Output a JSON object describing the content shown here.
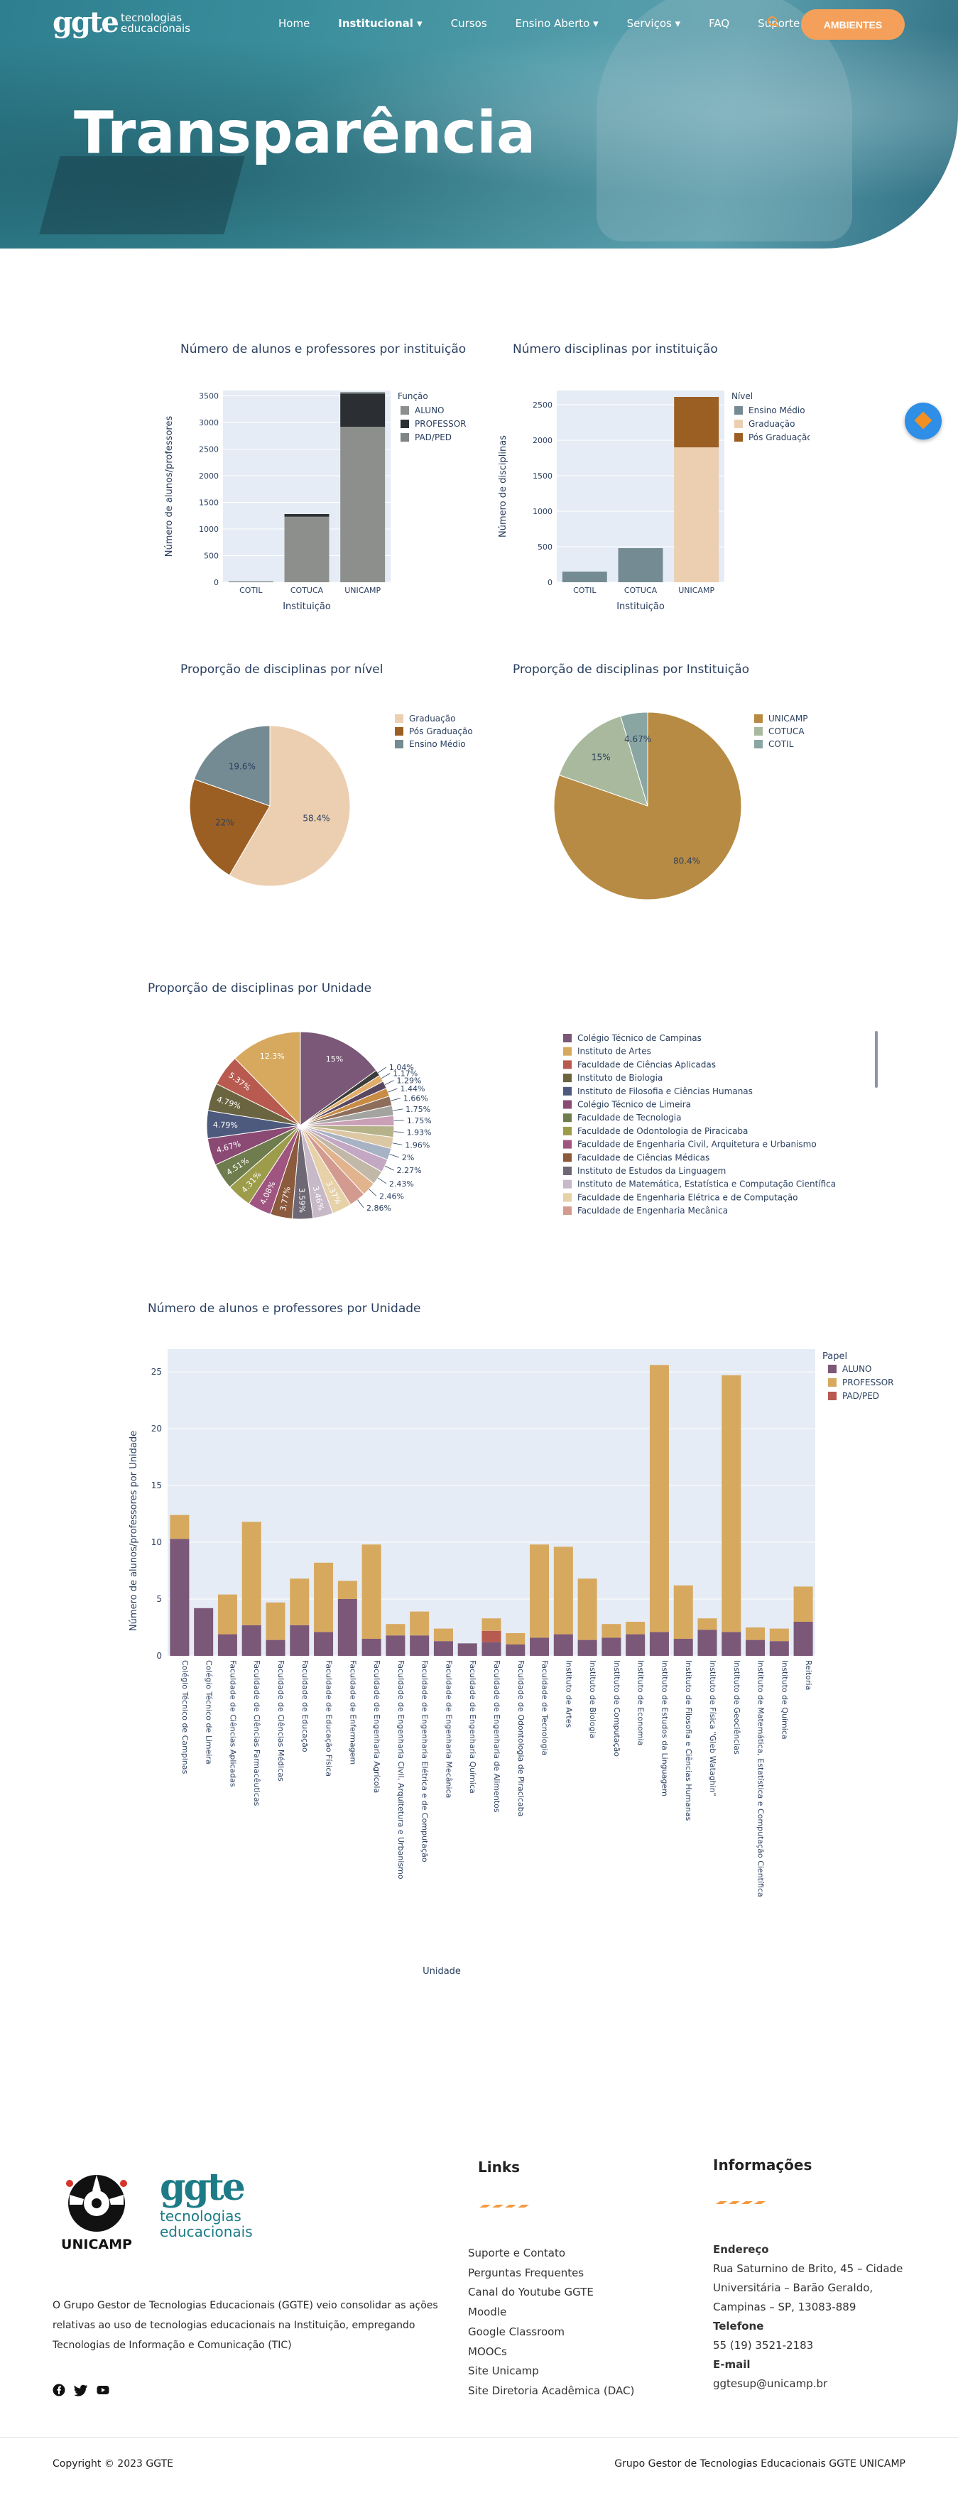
{
  "nav": {
    "logo_mark": "ggte",
    "logo_text": "tecnologias educacionais",
    "items": [
      {
        "label": "Home"
      },
      {
        "label": "Institucional ▾"
      },
      {
        "label": "Cursos"
      },
      {
        "label": "Ensino Aberto ▾"
      },
      {
        "label": "Serviços ▾"
      },
      {
        "label": "FAQ"
      },
      {
        "label": "Suporte"
      }
    ],
    "search_icon": "🔍",
    "button": "AMBIENTES"
  },
  "hero": {
    "title": "Transparência"
  },
  "charts": {
    "c1": {
      "title": "Número de alunos e professores por instituição",
      "xlabel": "Instituição",
      "ylabel": "Número de alunos/professores",
      "legend_title": "Função",
      "categories": [
        "COTIL",
        "COTUCA",
        "UNICAMP"
      ],
      "series": [
        {
          "name": "ALUNO",
          "color": "#8c8f8c",
          "values": [
            10,
            1230,
            2920
          ]
        },
        {
          "name": "PROFESSOR",
          "color": "#2b2f33",
          "values": [
            5,
            50,
            620
          ]
        },
        {
          "name": "PAD/PED",
          "color": "#7f8585",
          "values": [
            0,
            0,
            30
          ]
        }
      ],
      "ylim": [
        0,
        3600
      ],
      "ticks": [
        0,
        500,
        1000,
        1500,
        2000,
        2500,
        3000,
        3500
      ]
    },
    "c2": {
      "title": "Número disciplinas por instituição",
      "xlabel": "Instituição",
      "ylabel": "Número de disciplinas",
      "legend_title": "Nível",
      "categories": [
        "COTIL",
        "COTUCA",
        "UNICAMP"
      ],
      "series": [
        {
          "name": "Ensino Médio",
          "color": "#758b93",
          "values": [
            150,
            480,
            0
          ]
        },
        {
          "name": "Graduação",
          "color": "#eccfb0",
          "values": [
            0,
            0,
            1900
          ]
        },
        {
          "name": "Pós Graduação",
          "color": "#9b5f24",
          "values": [
            0,
            0,
            710
          ]
        }
      ],
      "ylim": [
        0,
        2700
      ],
      "ticks": [
        0,
        500,
        1000,
        1500,
        2000,
        2500
      ]
    },
    "c3": {
      "title": "Proporção de disciplinas por nível",
      "slices": [
        {
          "name": "Graduação",
          "value": 58.4,
          "color": "#eccfb0",
          "label": "58.4%"
        },
        {
          "name": "Pós Graduação",
          "value": 22,
          "color": "#9b5f24",
          "label": "22%"
        },
        {
          "name": "Ensino Médio",
          "value": 19.6,
          "color": "#758b93",
          "label": "19.6%"
        }
      ]
    },
    "c4": {
      "title": "Proporção de disciplinas por Instituição",
      "slices": [
        {
          "name": "UNICAMP",
          "value": 80.4,
          "color": "#b78b43",
          "label": "80.4%"
        },
        {
          "name": "COTUCA",
          "value": 15,
          "color": "#a9b99d",
          "label": "15%"
        },
        {
          "name": "COTIL",
          "value": 4.67,
          "color": "#8aa6a3",
          "label": "4.67%"
        }
      ]
    },
    "c5": {
      "title": "Proporção de disciplinas por Unidade",
      "legend": [
        {
          "name": "Colégio Técnico de Campinas",
          "color": "#7b5877"
        },
        {
          "name": "Instituto de Artes",
          "color": "#d7a95f"
        },
        {
          "name": "Faculdade de Ciências Aplicadas",
          "color": "#b85a4f"
        },
        {
          "name": "Instituto de Biologia",
          "color": "#6b6440"
        },
        {
          "name": "Instituto de Filosofia e Ciências Humanas",
          "color": "#4e5a7d"
        },
        {
          "name": "Colégio Técnico de Limeira",
          "color": "#8a4a74"
        },
        {
          "name": "Faculdade de Tecnologia",
          "color": "#6f7c4d"
        },
        {
          "name": "Faculdade de Odontologia de Piracicaba",
          "color": "#9c9c4b"
        },
        {
          "name": "Faculdade de Engenharia Civil, Arquitetura e Urbanismo",
          "color": "#a05580"
        },
        {
          "name": "Faculdade de Ciências Médicas",
          "color": "#8c5a3c"
        },
        {
          "name": "Instituto de Estudos da Linguagem",
          "color": "#6d6873"
        },
        {
          "name": "Instituto de Matemática, Estatística e Computação Científica",
          "color": "#c7b9c8"
        },
        {
          "name": "Faculdade de Engenharia Elétrica e de Computação",
          "color": "#e6d1a8"
        },
        {
          "name": "Faculdade de Engenharia Mecânica",
          "color": "#d39b8f"
        }
      ],
      "slices": [
        {
          "value": 15,
          "color": "#7b5877",
          "label": "15%"
        },
        {
          "value": 1.04,
          "color": "#3c3d3a",
          "label": "1.04%"
        },
        {
          "value": 1.17,
          "color": "#e1ad6a",
          "label": "1.17%"
        },
        {
          "value": 1.29,
          "color": "#5b4660",
          "label": "1.29%"
        },
        {
          "value": 1.44,
          "color": "#c88c45",
          "label": "1.44%"
        },
        {
          "value": 1.66,
          "color": "#8e6e5b",
          "label": "1.66%"
        },
        {
          "value": 1.75,
          "color": "#a3a3a0",
          "label": "1.75%"
        },
        {
          "value": 1.75,
          "color": "#c9a0b6",
          "label": "1.75%"
        },
        {
          "value": 1.93,
          "color": "#b5b28a",
          "label": "1.93%"
        },
        {
          "value": 1.96,
          "color": "#dcc7a5",
          "label": "1.96%"
        },
        {
          "value": 2,
          "color": "#a7b2c4",
          "label": "2%"
        },
        {
          "value": 2.27,
          "color": "#c4a7c2",
          "label": "2.27%"
        },
        {
          "value": 2.43,
          "color": "#c2b8a8",
          "label": "2.43%"
        },
        {
          "value": 2.46,
          "color": "#e1b48e",
          "label": "2.46%"
        },
        {
          "value": 2.86,
          "color": "#d39b8f",
          "label": "2.86%"
        },
        {
          "value": 3.37,
          "color": "#e6d1a8",
          "label": "3.37%"
        },
        {
          "value": 3.46,
          "color": "#c7b9c8",
          "label": "3.46%"
        },
        {
          "value": 3.59,
          "color": "#6d6873",
          "label": "3.59%"
        },
        {
          "value": 3.77,
          "color": "#8c5a3c",
          "label": "3.77%"
        },
        {
          "value": 4.08,
          "color": "#a05580",
          "label": "4.08%"
        },
        {
          "value": 4.31,
          "color": "#9c9c4b",
          "label": "4.31%"
        },
        {
          "value": 4.51,
          "color": "#6f7c4d",
          "label": "4.51%"
        },
        {
          "value": 4.67,
          "color": "#8a4a74",
          "label": "4.67%"
        },
        {
          "value": 4.79,
          "color": "#4e5a7d",
          "label": "4.79%"
        },
        {
          "value": 4.79,
          "color": "#6b6440",
          "label": "4.79%"
        },
        {
          "value": 5.37,
          "color": "#b85a4f",
          "label": "5.37%"
        },
        {
          "value": 12.3,
          "color": "#d7a95f",
          "label": "12.3%"
        }
      ]
    },
    "c6": {
      "title": "Número de alunos e professores por Unidade",
      "xlabel": "Unidade",
      "ylabel": "Número de alunos/professores por Unidade",
      "legend_title": "Papel",
      "legend": [
        {
          "name": "ALUNO",
          "color": "#7b5877"
        },
        {
          "name": "PROFESSOR",
          "color": "#d7a95f"
        },
        {
          "name": "PAD/PED",
          "color": "#b85a4f"
        }
      ],
      "ticks": [
        0,
        5,
        10,
        15,
        20,
        25
      ],
      "ylim": [
        0,
        27
      ],
      "categories": [
        "Colégio Técnico de Campinas",
        "Colégio Técnico de Limeira",
        "Faculdade de Ciências Aplicadas",
        "Faculdade de Ciências Farmacêuticas",
        "Faculdade de Ciências Médicas",
        "Faculdade de Educação",
        "Faculdade de Educação Física",
        "Faculdade de Enfermagem",
        "Faculdade de Engenharia Agrícola",
        "Faculdade de Engenharia Civil, Arquitetura e Urbanismo",
        "Faculdade de Engenharia Elétrica e de Computação",
        "Faculdade de Engenharia Mecânica",
        "Faculdade de Engenharia Química",
        "Faculdade de Engenharia de Alimentos",
        "Faculdade de Odontologia de Piracicaba",
        "Faculdade de Tecnologia",
        "Instituto de Artes",
        "Instituto de Biologia",
        "Instituto de Computação",
        "Instituto de Economia",
        "Instituto de Estudos da Linguagem",
        "Instituto de Filosofia e Ciências Humanas",
        "Instituto de Física \"Gleb Wataghin\"",
        "Instituto de Geociências",
        "Instituto de Matemática, Estatística e Computação Científica",
        "Instituto de Química",
        "Reitoria"
      ],
      "aluno": [
        10.3,
        4.2,
        1.9,
        2.7,
        1.4,
        2.7,
        2.1,
        5.0,
        1.5,
        1.8,
        1.8,
        1.3,
        1.1,
        1.2,
        1.0,
        1.6,
        1.9,
        1.4,
        1.6,
        1.9,
        2.1,
        1.5,
        2.3,
        2.1,
        1.4,
        1.3,
        3.0
      ],
      "professor": [
        2.1,
        0,
        3.5,
        9.1,
        3.3,
        4.1,
        6.1,
        1.6,
        8.3,
        1.0,
        2.1,
        1.1,
        0,
        1.1,
        1.0,
        8.2,
        7.7,
        5.4,
        1.2,
        1.1,
        23.5,
        4.7,
        1.0,
        22.6,
        1.1,
        1.1,
        3.1
      ],
      "padped": [
        0,
        0,
        0,
        0,
        0,
        0,
        0,
        0,
        0,
        0,
        0,
        0,
        0,
        1.0,
        0,
        0,
        0,
        0,
        0,
        0,
        0,
        0,
        0,
        0,
        0,
        0,
        0
      ]
    }
  },
  "footer": {
    "unicamp_label": "UNICAMP",
    "ggte_mark": "ggte",
    "ggte_text": "tecnologias educacionais",
    "description": "O Grupo Gestor de Tecnologias Educacionais (GGTE) veio consolidar as ações relativas ao uso de tecnologias educacionais na Instituição, empregando Tecnologias de Informação e Comunicação (TIC)",
    "social_icons": [
      "facebook-icon",
      "twitter-icon",
      "youtube-icon"
    ],
    "links_title": "Links",
    "links": [
      "Suporte e Contato",
      "Perguntas Frequentes",
      "Canal do Youtube GGTE",
      "Moodle",
      "Google Classroom",
      "MOOCs",
      "Site Unicamp",
      "Site Diretoria Acadêmica (DAC)"
    ],
    "info_title": "Informações",
    "address_label": "Endereço",
    "address": "Rua Saturnino de Brito, 45 – Cidade Universitária – Barão Geraldo, Campinas – SP, 13083-889",
    "phone_label": "Telefone",
    "phone": "55 (19) 3521-2183",
    "email_label": "E-mail",
    "email": "ggtesup@unicamp.br",
    "copyright": "Copyright © 2023 GGTE",
    "org": "Grupo Gestor de Tecnologias Educacionais GGTE UNICAMP",
    "accent": "#f49a3f"
  }
}
